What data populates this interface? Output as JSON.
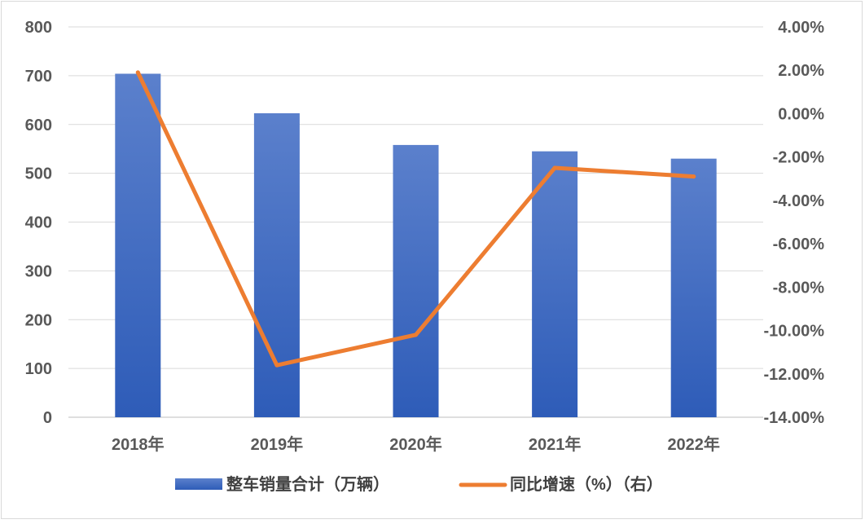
{
  "chart_data": {
    "type": "bar",
    "categories": [
      "2018年",
      "2019年",
      "2020年",
      "2021年",
      "2022年"
    ],
    "series": [
      {
        "name": "整车销量合计（万辆）",
        "type": "bar",
        "axis": "left",
        "color": "#4472c4",
        "values": [
          704,
          623,
          558,
          545,
          530
        ]
      },
      {
        "name": "同比增速（%）（右）",
        "type": "line",
        "axis": "right",
        "color": "#ed7d31",
        "values": [
          1.9,
          -11.6,
          -10.2,
          -2.5,
          -2.9
        ]
      }
    ],
    "left_axis": {
      "ylim": [
        0,
        800
      ],
      "ticks": [
        0,
        100,
        200,
        300,
        400,
        500,
        600,
        700,
        800
      ],
      "tick_labels": [
        "0",
        "100",
        "200",
        "300",
        "400",
        "500",
        "600",
        "700",
        "800"
      ]
    },
    "right_axis": {
      "ylim": [
        -14,
        4
      ],
      "ticks": [
        -14,
        -12,
        -10,
        -8,
        -6,
        -4,
        -2,
        0,
        2,
        4
      ],
      "tick_labels": [
        "-14.00%",
        "-12.00%",
        "-10.00%",
        "-8.00%",
        "-6.00%",
        "-4.00%",
        "-2.00%",
        "0.00%",
        "2.00%",
        "4.00%"
      ]
    },
    "grid": true,
    "legend_position": "bottom"
  }
}
